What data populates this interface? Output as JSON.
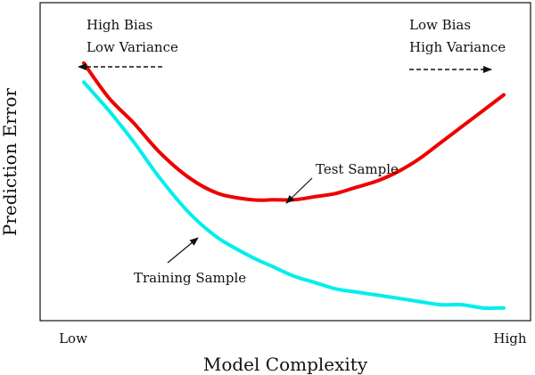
{
  "chart_data": {
    "type": "line",
    "xlabel": "Model Complexity",
    "ylabel": "Prediction Error",
    "x_ticks": [
      "Low",
      "High"
    ],
    "xlim": [
      0,
      1
    ],
    "ylim": [
      0,
      1
    ],
    "grid": false,
    "legend": "none",
    "series": [
      {
        "name": "Test Sample",
        "color": "#ee0000",
        "x": [
          0.0,
          0.06,
          0.12,
          0.18,
          0.25,
          0.32,
          0.4,
          0.45,
          0.5,
          0.55,
          0.6,
          0.65,
          0.7,
          0.75,
          0.8,
          0.85,
          0.9,
          0.95,
          1.0
        ],
        "y": [
          0.81,
          0.7,
          0.62,
          0.53,
          0.45,
          0.4,
          0.38,
          0.38,
          0.38,
          0.39,
          0.4,
          0.42,
          0.44,
          0.47,
          0.51,
          0.56,
          0.61,
          0.66,
          0.71
        ]
      },
      {
        "name": "Training Sample",
        "color": "#00eeee",
        "x": [
          0.0,
          0.06,
          0.12,
          0.18,
          0.25,
          0.32,
          0.4,
          0.45,
          0.5,
          0.55,
          0.6,
          0.65,
          0.7,
          0.75,
          0.8,
          0.85,
          0.9,
          0.95,
          1.0
        ],
        "y": [
          0.75,
          0.66,
          0.56,
          0.45,
          0.34,
          0.26,
          0.2,
          0.17,
          0.14,
          0.12,
          0.1,
          0.09,
          0.08,
          0.07,
          0.06,
          0.05,
          0.05,
          0.04,
          0.04
        ]
      }
    ],
    "annotations": [
      {
        "id": "high_bias",
        "lines": [
          "High Bias",
          "Low Variance"
        ],
        "arrow": "left"
      },
      {
        "id": "low_bias",
        "lines": [
          "Low Bias",
          "High Variance"
        ],
        "arrow": "right"
      },
      {
        "id": "test_label",
        "text": "Test Sample"
      },
      {
        "id": "train_label",
        "text": "Training Sample"
      }
    ]
  }
}
